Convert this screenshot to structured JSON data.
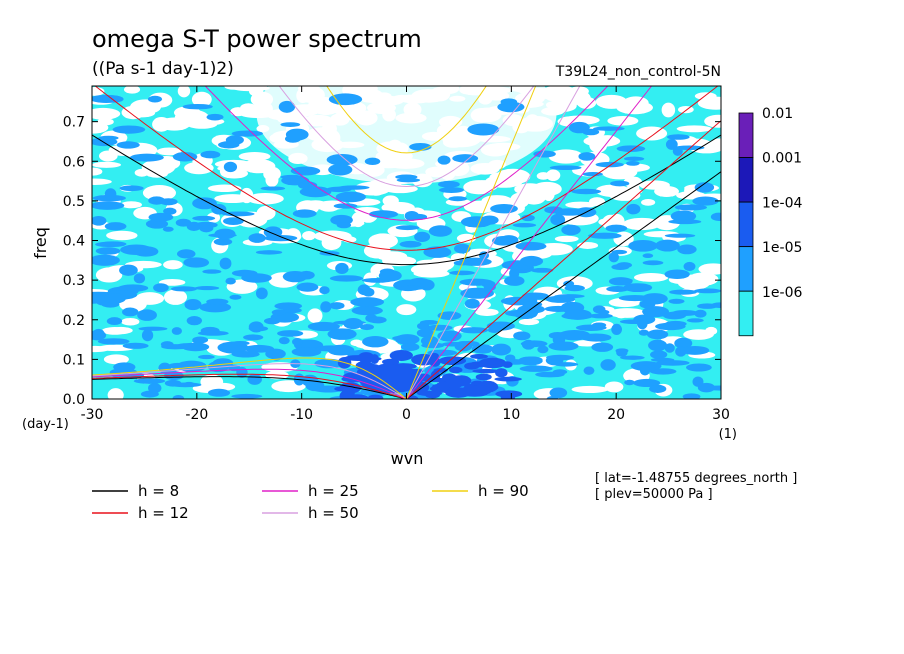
{
  "chart_data": {
    "type": "heatmap",
    "title": "omega S-T power spectrum",
    "subtitle": "((Pa s-1 day-1)2)",
    "run_label": "T39L24_non_control-5N",
    "xlabel": "wvn",
    "ylabel": "freq",
    "x_unit": "(1)",
    "y_unit": "(day-1)",
    "xlim": [
      -30,
      30
    ],
    "ylim": [
      0,
      0.79
    ],
    "x_ticks": [
      -30,
      -20,
      -10,
      0,
      10,
      20,
      30
    ],
    "x_tick_labels": [
      "-30",
      "-20",
      "-10",
      "0",
      "10",
      "20",
      "30"
    ],
    "y_ticks": [
      0.0,
      0.1,
      0.2,
      0.3,
      0.4,
      0.5,
      0.6,
      0.7
    ],
    "y_tick_labels": [
      "0.0",
      "0.1",
      "0.2",
      "0.3",
      "0.4",
      "0.5",
      "0.6",
      "0.7"
    ],
    "colorbar": {
      "levels": [
        "0.01",
        "0.001",
        "1e-04",
        "1e-05",
        "1e-06"
      ],
      "colors": [
        "#6a1fb8",
        "#1c18b8",
        "#1a5cf0",
        "#1fa0ff",
        "#33eef2"
      ]
    },
    "series": [
      {
        "name": "h =  8",
        "h": 8,
        "color": "#000000"
      },
      {
        "name": "h = 12",
        "h": 12,
        "color": "#e8101c"
      },
      {
        "name": "h = 25",
        "h": 25,
        "color": "#e020c8"
      },
      {
        "name": "h = 50",
        "h": 50,
        "color": "#d8a0e0"
      },
      {
        "name": "h = 90",
        "h": 90,
        "color": "#f0d010"
      }
    ],
    "info": [
      "[ lat=-1.48755 degrees_north ]",
      "[ plev=50000 Pa ]"
    ]
  }
}
